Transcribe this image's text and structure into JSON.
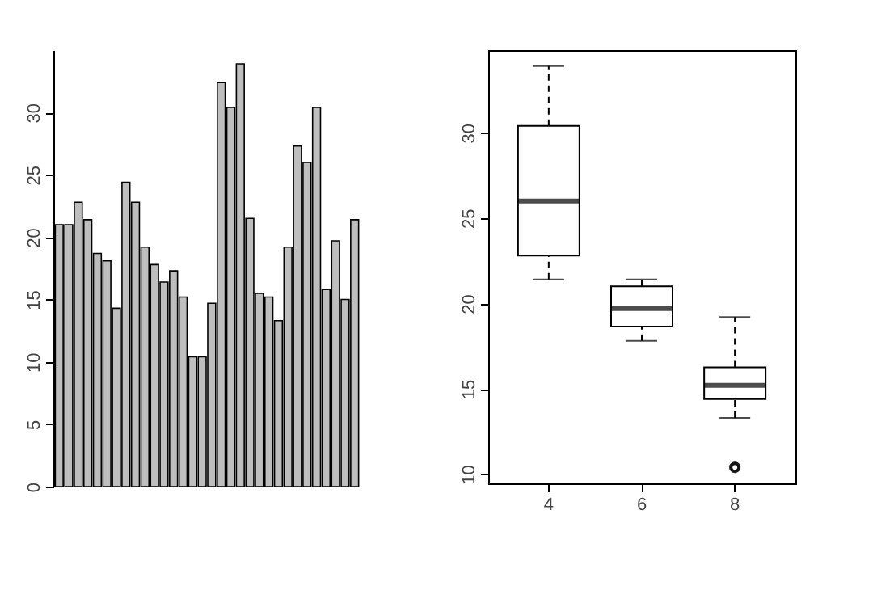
{
  "chart_data": [
    {
      "type": "bar",
      "categories": [
        null,
        null,
        null,
        null,
        null,
        null,
        null,
        null,
        null,
        null,
        null,
        null,
        null,
        null,
        null,
        null,
        null,
        null,
        null,
        null,
        null,
        null,
        null,
        null,
        null,
        null,
        null,
        null,
        null,
        null,
        null,
        null
      ],
      "values": [
        21.0,
        21.0,
        22.8,
        21.4,
        18.7,
        18.1,
        14.3,
        24.4,
        22.8,
        19.2,
        17.8,
        16.4,
        17.3,
        15.2,
        10.4,
        10.4,
        14.7,
        32.4,
        30.4,
        33.9,
        21.5,
        15.5,
        15.2,
        13.3,
        19.2,
        27.3,
        26.0,
        30.4,
        15.8,
        19.7,
        15.0,
        21.4
      ],
      "color": "#bebebe",
      "ylim": [
        0,
        35
      ],
      "yticks": [
        0,
        5,
        10,
        15,
        20,
        25,
        30
      ],
      "grid": false,
      "tick_labels": "y"
    },
    {
      "type": "box",
      "categories": [
        "4",
        "6",
        "8"
      ],
      "boxes": [
        {
          "low": 21.4,
          "q1": 22.8,
          "median": 26.0,
          "q3": 30.4,
          "high": 33.9
        },
        {
          "low": 17.8,
          "q1": 18.65,
          "median": 19.7,
          "q3": 21.0,
          "high": 21.4
        },
        {
          "low": 13.3,
          "q1": 14.4,
          "median": 15.2,
          "q3": 16.25,
          "high": 19.2,
          "outliers": [
            10.4,
            10.4
          ]
        }
      ],
      "ylim": [
        9.46,
        34.84
      ],
      "yticks": [
        10,
        15,
        20,
        25,
        30
      ],
      "grid": false
    }
  ]
}
